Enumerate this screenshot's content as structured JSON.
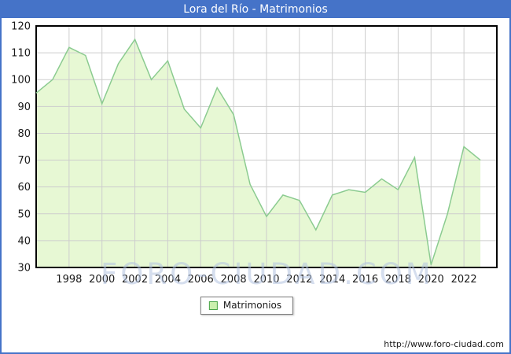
{
  "window": {
    "title": "Lora del Río - Matrimonios"
  },
  "legend": {
    "label": "Matrimonios"
  },
  "watermark": "FORO-CIUDAD.COM",
  "footer": {
    "url_text": "http://www.foro-ciudad.com"
  },
  "colors": {
    "titlebar": "#4573c8",
    "frame_border": "#4573c8",
    "plot_background": "#ffffff",
    "plot_border": "#000000",
    "grid": "#cdcdcd",
    "area_fill": "#e7f8d4",
    "area_stroke": "#8bcb90",
    "tick_text": "#1a1a1a",
    "watermark_text": "#b2c3e0",
    "legend_swatch_fill": "#caefad",
    "legend_swatch_border": "#4aa54a"
  },
  "chart_data": {
    "type": "area",
    "title": "Lora del Río - Matrimonios",
    "series_name": "Matrimonios",
    "x": [
      1996,
      1997,
      1998,
      1999,
      2000,
      2001,
      2002,
      2003,
      2004,
      2005,
      2006,
      2007,
      2008,
      2009,
      2010,
      2011,
      2012,
      2013,
      2014,
      2015,
      2016,
      2017,
      2018,
      2019,
      2020,
      2021,
      2022,
      2023
    ],
    "values": [
      95,
      100,
      112,
      109,
      91,
      106,
      115,
      100,
      107,
      89,
      82,
      97,
      87,
      61,
      49,
      57,
      55,
      44,
      57,
      59,
      58,
      63,
      59,
      71,
      31,
      50,
      75,
      70
    ],
    "ylim": [
      30,
      120
    ],
    "ytick_step": 10,
    "xticks": [
      1998,
      2000,
      2002,
      2004,
      2006,
      2008,
      2010,
      2012,
      2014,
      2016,
      2018,
      2020,
      2022
    ],
    "grid": true,
    "legend_position": "bottom-center"
  }
}
